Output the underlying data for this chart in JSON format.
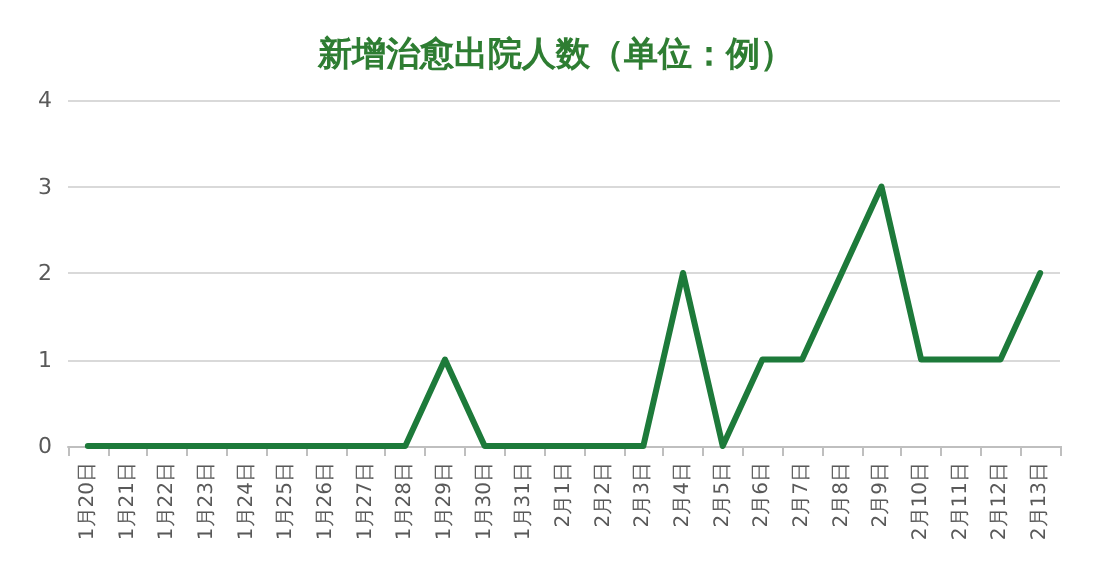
{
  "chart_data": {
    "type": "line",
    "title": "新增治愈出院人数（单位：例）",
    "categories": [
      "1月20日",
      "1月21日",
      "1月22日",
      "1月23日",
      "1月24日",
      "1月25日",
      "1月26日",
      "1月27日",
      "1月28日",
      "1月29日",
      "1月30日",
      "1月31日",
      "2月1日",
      "2月2日",
      "2月3日",
      "2月4日",
      "2月5日",
      "2月6日",
      "2月7日",
      "2月8日",
      "2月9日",
      "2月10日",
      "2月11日",
      "2月12日",
      "2月13日"
    ],
    "series": [
      {
        "color": "#1d7a3a",
        "values": [
          0,
          0,
          0,
          0,
          0,
          0,
          0,
          0,
          0,
          1,
          0,
          0,
          0,
          0,
          0,
          2,
          0,
          1,
          1,
          2,
          3,
          1,
          1,
          1,
          2
        ]
      }
    ],
    "ylim": [
      0,
      4
    ],
    "yticks": [
      0,
      1,
      2,
      3,
      4
    ],
    "grid": "y",
    "marker": "none",
    "line_style": "solid"
  }
}
